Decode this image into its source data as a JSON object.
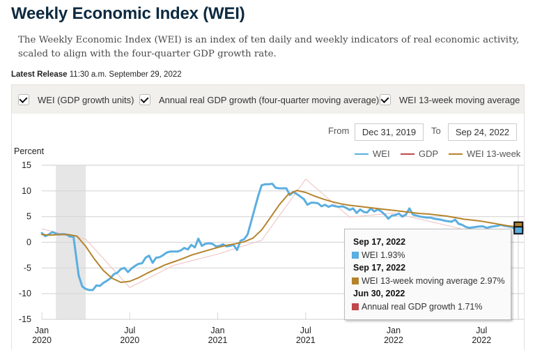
{
  "page": {
    "title": "Weekly Economic Index (WEI)",
    "description": "The Weekly Economic Index (WEI) is an index of ten daily and weekly indicators of real economic activity, scaled to align with the four-quarter GDP growth rate.",
    "release_label": "Latest Release",
    "release_value": "11:30 a.m. September 29, 2022"
  },
  "controls": {
    "checkboxes": [
      {
        "label": "WEI (GDP growth units)",
        "checked": true
      },
      {
        "label": "Annual real GDP growth (four-quarter moving average)",
        "checked": true
      },
      {
        "label": "WEI 13-week moving average",
        "checked": true
      }
    ],
    "from_label": "From",
    "from_value": "Dec 31, 2019",
    "to_label": "To",
    "to_value": "Sep 24, 2022"
  },
  "colors": {
    "wei": "#5aaee0",
    "gdp": "#c0474b",
    "gdp_line": "#f0c8c8",
    "wei13": "#b5832c",
    "recession": "#e6e6e6",
    "grid": "#d6d6d6"
  },
  "chart_data": {
    "type": "line",
    "title": "Weekly Economic Index (WEI)",
    "xlabel": "",
    "ylabel": "Percent",
    "ylim": [
      -15,
      15
    ],
    "yticks": [
      "15",
      "10",
      "5",
      "0",
      "-5",
      "-10",
      "-15"
    ],
    "ytick_values": [
      15,
      10,
      5,
      0,
      -5,
      -10,
      -15
    ],
    "xlim": [
      2020.0,
      2022.73
    ],
    "xticks": [
      {
        "x": 2020.0,
        "label1": "Jan",
        "label2": "2020"
      },
      {
        "x": 2020.5,
        "label1": "Jul",
        "label2": "2020"
      },
      {
        "x": 2021.0,
        "label1": "Jan",
        "label2": "2021"
      },
      {
        "x": 2021.5,
        "label1": "Jul",
        "label2": "2021"
      },
      {
        "x": 2022.0,
        "label1": "Jan",
        "label2": "2022"
      },
      {
        "x": 2022.5,
        "label1": "Jul",
        "label2": "2022"
      }
    ],
    "grid": true,
    "legend": {
      "placement": "top-right",
      "entries": [
        {
          "name": "WEI",
          "color_key": "wei"
        },
        {
          "name": "GDP",
          "color_key": "gdp"
        },
        {
          "name": "WEI 13-week",
          "color_key": "wei13"
        }
      ]
    },
    "recession_shading": {
      "x0": 2020.08,
      "x1": 2020.25
    },
    "series": [
      {
        "name": "WEI",
        "color_key": "wei",
        "x": [
          2020.0,
          2020.02,
          2020.04,
          2020.06,
          2020.08,
          2020.1,
          2020.12,
          2020.14,
          2020.16,
          2020.18,
          2020.2,
          2020.21,
          2020.23,
          2020.25,
          2020.27,
          2020.29,
          2020.31,
          2020.33,
          2020.35,
          2020.37,
          2020.39,
          2020.41,
          2020.43,
          2020.45,
          2020.47,
          2020.49,
          2020.51,
          2020.53,
          2020.55,
          2020.57,
          2020.59,
          2020.61,
          2020.63,
          2020.65,
          2020.67,
          2020.69,
          2020.71,
          2020.73,
          2020.75,
          2020.77,
          2020.79,
          2020.81,
          2020.83,
          2020.85,
          2020.87,
          2020.89,
          2020.91,
          2020.93,
          2020.95,
          2020.97,
          2020.99,
          2021.01,
          2021.03,
          2021.05,
          2021.07,
          2021.09,
          2021.11,
          2021.13,
          2021.15,
          2021.17,
          2021.19,
          2021.21,
          2021.23,
          2021.25,
          2021.27,
          2021.29,
          2021.31,
          2021.33,
          2021.35,
          2021.37,
          2021.39,
          2021.41,
          2021.43,
          2021.45,
          2021.47,
          2021.49,
          2021.51,
          2021.53,
          2021.55,
          2021.57,
          2021.59,
          2021.61,
          2021.63,
          2021.65,
          2021.67,
          2021.69,
          2021.71,
          2021.73,
          2021.75,
          2021.77,
          2021.79,
          2021.81,
          2021.83,
          2021.85,
          2021.87,
          2021.89,
          2021.91,
          2021.93,
          2021.95,
          2021.97,
          2021.99,
          2022.01,
          2022.03,
          2022.05,
          2022.07,
          2022.09,
          2022.11,
          2022.13,
          2022.15,
          2022.17,
          2022.19,
          2022.21,
          2022.23,
          2022.25,
          2022.27,
          2022.29,
          2022.31,
          2022.33,
          2022.35,
          2022.37,
          2022.39,
          2022.41,
          2022.43,
          2022.45,
          2022.47,
          2022.49,
          2022.51,
          2022.53,
          2022.55,
          2022.57,
          2022.59,
          2022.61,
          2022.63,
          2022.65,
          2022.67,
          2022.69,
          2022.71
        ],
        "values": [
          1.8,
          1.2,
          1.5,
          2.0,
          1.7,
          1.5,
          1.6,
          1.5,
          1.1,
          1.1,
          -4.0,
          -6.5,
          -8.6,
          -9.1,
          -9.3,
          -9.3,
          -8.4,
          -8.5,
          -7.9,
          -7.5,
          -7.0,
          -6.2,
          -5.9,
          -5.2,
          -5.0,
          -5.8,
          -5.1,
          -4.6,
          -4.2,
          -4.1,
          -3.0,
          -2.6,
          -4.0,
          -3.0,
          -2.9,
          -2.5,
          -2.0,
          -1.8,
          -1.8,
          -1.8,
          -1.6,
          -1.1,
          -1.4,
          -0.5,
          -1.0,
          0.7,
          -0.7,
          -0.3,
          -0.2,
          -0.3,
          -0.8,
          -0.7,
          -0.4,
          -0.8,
          -0.7,
          -0.5,
          -1.5,
          0.3,
          0.6,
          1.5,
          4.0,
          6.5,
          9.0,
          11.1,
          11.3,
          11.3,
          11.4,
          10.6,
          10.5,
          10.5,
          10.5,
          9.2,
          9.8,
          9.4,
          8.9,
          8.4,
          7.3,
          7.7,
          7.7,
          7.6,
          7.0,
          7.3,
          6.9,
          7.2,
          7.0,
          6.9,
          7.0,
          6.7,
          6.3,
          6.6,
          5.7,
          6.4,
          5.9,
          5.8,
          6.6,
          6.0,
          6.4,
          6.0,
          5.4,
          4.6,
          5.2,
          5.3,
          5.6,
          5.0,
          5.4,
          6.6,
          5.4,
          5.2,
          5.0,
          4.9,
          4.8,
          4.8,
          4.6,
          4.5,
          4.4,
          4.2,
          4.1,
          4.0,
          4.4,
          3.6,
          3.4,
          3.0,
          2.8,
          2.9,
          3.0,
          3.1,
          3.1,
          2.8,
          3.0,
          3.1,
          3.2,
          3.4,
          3.2,
          3.1,
          3.0,
          2.6,
          1.93
        ]
      },
      {
        "name": "Annual real GDP growth (four-quarter moving average)",
        "color_key": "gdp_line",
        "x": [
          2020.0,
          2020.25,
          2020.5,
          2020.75,
          2021.0,
          2021.25,
          2021.5,
          2021.75,
          2022.0,
          2022.25,
          2022.5
        ],
        "values": [
          2.6,
          0.6,
          -8.8,
          -4.5,
          -2.3,
          0.4,
          12.3,
          4.9,
          5.7,
          3.7,
          1.71
        ]
      },
      {
        "name": "WEI 13-week moving average",
        "color_key": "wei13",
        "x": [
          2020.0,
          2020.05,
          2020.1,
          2020.15,
          2020.2,
          2020.25,
          2020.3,
          2020.35,
          2020.4,
          2020.45,
          2020.5,
          2020.55,
          2020.6,
          2020.65,
          2020.7,
          2020.75,
          2020.8,
          2020.85,
          2020.9,
          2020.95,
          2021.0,
          2021.05,
          2021.1,
          2021.15,
          2021.2,
          2021.25,
          2021.3,
          2021.35,
          2021.4,
          2021.45,
          2021.5,
          2021.55,
          2021.6,
          2021.65,
          2021.7,
          2021.75,
          2021.8,
          2021.85,
          2021.9,
          2021.95,
          2022.0,
          2022.05,
          2022.1,
          2022.15,
          2022.2,
          2022.25,
          2022.3,
          2022.35,
          2022.4,
          2022.45,
          2022.5,
          2022.55,
          2022.6,
          2022.65,
          2022.71
        ],
        "values": [
          1.5,
          1.4,
          1.5,
          1.5,
          1.2,
          -0.8,
          -3.3,
          -5.5,
          -7.0,
          -7.8,
          -7.6,
          -6.9,
          -6.0,
          -5.2,
          -4.4,
          -3.8,
          -3.2,
          -2.5,
          -2.0,
          -1.5,
          -1.0,
          -0.6,
          -0.3,
          0.1,
          0.8,
          2.4,
          4.8,
          7.3,
          9.3,
          10.1,
          9.7,
          9.0,
          8.4,
          7.9,
          7.5,
          7.2,
          7.0,
          6.8,
          6.6,
          6.4,
          6.2,
          6.0,
          5.8,
          5.6,
          5.5,
          5.3,
          5.1,
          4.8,
          4.5,
          4.3,
          4.1,
          3.8,
          3.5,
          3.2,
          2.97
        ]
      }
    ],
    "tooltip": {
      "entries": [
        {
          "date": "Sep 17, 2022",
          "label": "WEI 1.93%",
          "color_key": "wei"
        },
        {
          "date": "Sep 17, 2022",
          "label": "WEI 13-week moving average 2.97%",
          "color_key": "wei13"
        },
        {
          "date": "Jun 30, 2022",
          "label": "Annual real GDP growth 1.71%",
          "color_key": "gdp"
        }
      ]
    }
  }
}
